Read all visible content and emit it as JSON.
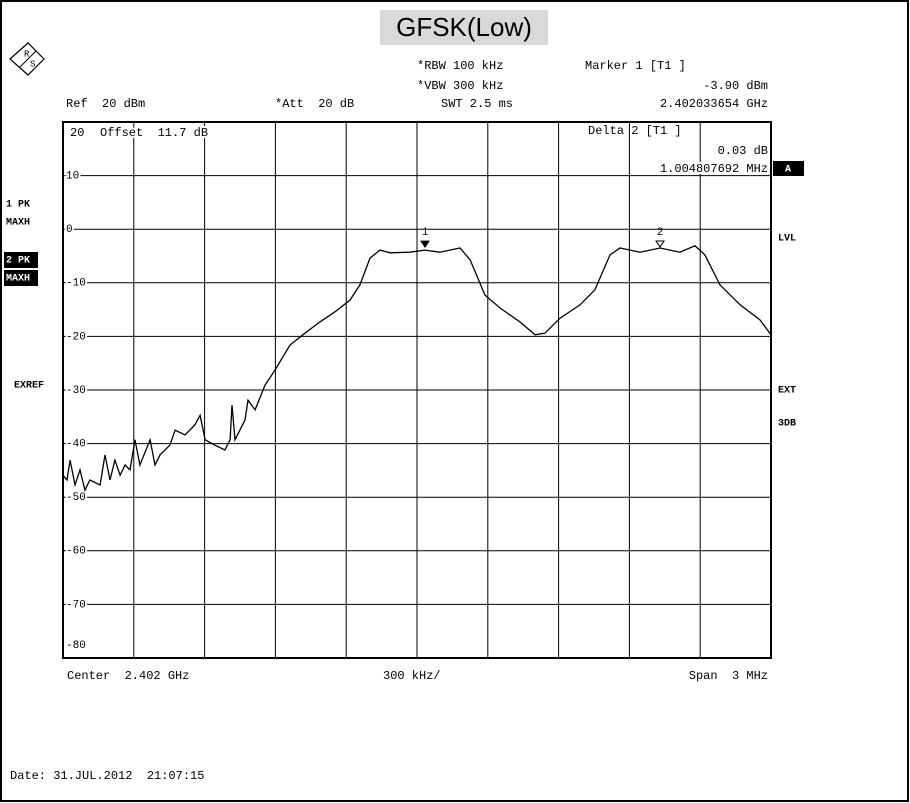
{
  "chart_data": {
    "type": "line",
    "title": "GFSK(Low)",
    "logo": [
      "R",
      "S"
    ],
    "settings": {
      "ref": "Ref  20 dBm",
      "att": "*Att  20 dB",
      "rbw": "*RBW 100 kHz",
      "vbw": "*VBW 300 kHz",
      "swt": "SWT 2.5 ms",
      "marker1": "Marker 1 [T1 ]",
      "marker1_level": "-3.90 dBm",
      "marker1_freq": "2.402033654 GHz",
      "offset_ref": "20",
      "offset": "Offset  11.7 dB",
      "delta2": "Delta 2 [T1 ]",
      "delta2_level": "0.03 dB",
      "delta2_freq": "1.004807692 MHz"
    },
    "side_left": {
      "trace1": "1 PK",
      "trace1_mode": "MAXH",
      "trace2": "2 PK",
      "trace2_mode": "MAXH",
      "exref": "EXREF"
    },
    "side_right": {
      "a": "A",
      "lvl": "LVL",
      "ext": "EXT",
      "db3": "3DB"
    },
    "bottom": {
      "center": "Center  2.402 GHz",
      "per_div": "300 kHz/",
      "span": "Span  3 MHz"
    },
    "date": "Date: 31.JUL.2012  21:07:15",
    "xlim": [
      2.4005,
      2.4035
    ],
    "xticks": [
      2.4005,
      2.4008,
      2.4011,
      2.4014,
      2.4017,
      2.402,
      2.4023,
      2.4026,
      2.4029,
      2.4032,
      2.4035
    ],
    "ylim": [
      -80,
      20
    ],
    "yticks": [
      20,
      10,
      0,
      -10,
      -20,
      -30,
      -40,
      -50,
      -60,
      -70,
      -80
    ],
    "grid": true,
    "series": [
      {
        "name": "1 PK",
        "color": "#000000",
        "x": [
          2.4005,
          2.400517,
          2.40053,
          2.400551,
          2.400572,
          2.400593,
          2.400614,
          2.400657,
          2.400678,
          2.400699,
          2.40072,
          2.400742,
          2.400763,
          2.400784,
          2.400805,
          2.400826,
          2.400869,
          2.40089,
          2.400911,
          2.400953,
          2.400975,
          2.401017,
          2.401059,
          2.401081,
          2.401102,
          2.401144,
          2.401186,
          2.401208,
          2.401216,
          2.401229,
          2.401271,
          2.401284,
          2.401314,
          2.401356,
          2.401398,
          2.401462,
          2.401525,
          2.401589,
          2.401653,
          2.401716,
          2.401758,
          2.401801,
          2.401843,
          2.401886,
          2.40197,
          2.402034,
          2.402097,
          2.402182,
          2.402225,
          2.402288,
          2.402352,
          2.402436,
          2.4025,
          2.402542,
          2.402606,
          2.402691,
          2.402754,
          2.402818,
          2.40286,
          2.402945,
          2.40303,
          2.403114,
          2.403178,
          2.40322,
          2.403284,
          2.403369,
          2.403453,
          2.4035
        ],
        "values": [
          -45.9,
          -46.8,
          -43.1,
          -47.7,
          -44.9,
          -48.7,
          -46.8,
          -47.7,
          -42.1,
          -46.8,
          -43.1,
          -45.9,
          -44.0,
          -44.9,
          -39.3,
          -44.0,
          -39.3,
          -44.0,
          -42.1,
          -40.3,
          -37.5,
          -38.4,
          -36.5,
          -34.7,
          -39.3,
          -40.3,
          -41.2,
          -39.3,
          -32.8,
          -39.3,
          -35.6,
          -31.9,
          -33.7,
          -29.1,
          -26.3,
          -21.6,
          -19.4,
          -17.3,
          -15.4,
          -13.2,
          -10.4,
          -5.4,
          -3.9,
          -4.4,
          -4.3,
          -3.9,
          -4.3,
          -3.5,
          -5.7,
          -12.3,
          -14.7,
          -17.3,
          -19.7,
          -19.4,
          -16.6,
          -14.1,
          -11.3,
          -4.8,
          -3.5,
          -4.3,
          -3.5,
          -4.3,
          -3.1,
          -4.8,
          -10.4,
          -14.1,
          -16.9,
          -19.7
        ]
      }
    ],
    "markers": [
      {
        "label": "1",
        "x": 2.402034,
        "y": -3.9,
        "filled": true
      },
      {
        "label": "2",
        "x": 2.40303,
        "y": -3.87,
        "filled": false
      }
    ]
  }
}
